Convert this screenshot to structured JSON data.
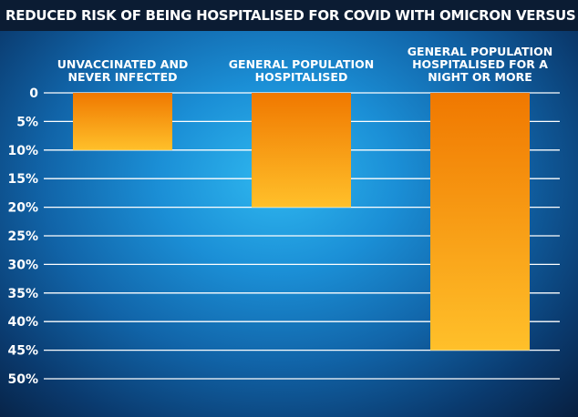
{
  "chart_data": {
    "type": "bar",
    "title": "REDUCED RISK OF BEING HOSPITALISED FOR COVID WITH OMICRON VERSUS DELTA",
    "categories": [
      "UNVACCINATED AND NEVER INFECTED",
      "GENERAL POPULATION HOSPITALISED",
      "GENERAL POPULATION HOSPITALISED FOR A NIGHT OR MORE"
    ],
    "values": [
      10,
      20,
      45
    ],
    "unit": "%",
    "ylim": [
      0,
      50
    ],
    "y_inverted": true,
    "y_ticks": [
      "0",
      "5%",
      "10%",
      "15%",
      "20%",
      "25%",
      "30%",
      "35%",
      "40%",
      "45%",
      "50%"
    ],
    "grid": true,
    "colors": {
      "bar_top": "#f07800",
      "bar_bottom": "#ffc02a",
      "grid": "#ffffff",
      "title_bg": "#0b1c33"
    }
  }
}
